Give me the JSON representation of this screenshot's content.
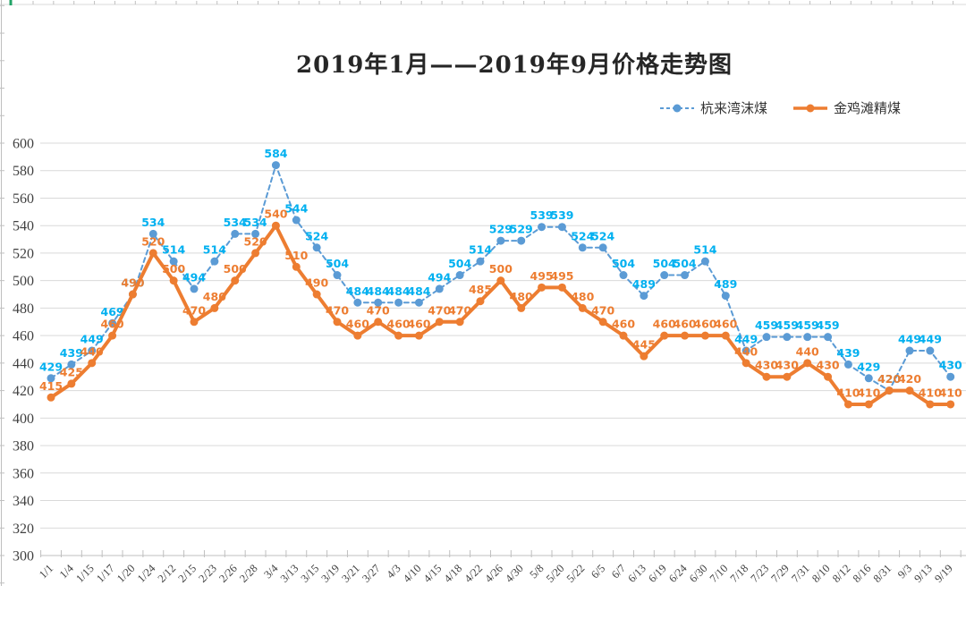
{
  "chart_data": {
    "type": "line",
    "title": "2019年1月——2019年9月价格走势图",
    "categories": [
      "1/1",
      "1/4",
      "1/15",
      "1/17",
      "1/20",
      "1/24",
      "2/12",
      "2/15",
      "2/23",
      "2/26",
      "2/28",
      "3/4",
      "3/13",
      "3/15",
      "3/19",
      "3/21",
      "3/27",
      "4/3",
      "4/10",
      "4/15",
      "4/18",
      "4/22",
      "4/26",
      "4/30",
      "5/8",
      "5/20",
      "5/22",
      "6/5",
      "6/7",
      "6/13",
      "6/19",
      "6/24",
      "6/30",
      "7/10",
      "7/18",
      "7/23",
      "7/29",
      "7/31",
      "8/10",
      "8/12",
      "8/16",
      "8/31",
      "9/3",
      "9/13",
      "9/19"
    ],
    "series": [
      {
        "name": "杭来湾沫煤",
        "style": "dashed",
        "color": "#5B9BD5",
        "label_color": "#00B0F0",
        "values": [
          429,
          439,
          449,
          469,
          490,
          534,
          514,
          494,
          514,
          534,
          534,
          584,
          544,
          524,
          504,
          484,
          484,
          484,
          484,
          494,
          504,
          514,
          529,
          529,
          539,
          539,
          524,
          524,
          504,
          489,
          504,
          504,
          514,
          489,
          449,
          459,
          459,
          459,
          459,
          439,
          429,
          420,
          449,
          449,
          430
        ]
      },
      {
        "name": "金鸡滩精煤",
        "style": "solid",
        "color": "#ED7D31",
        "label_color": "#ED7D31",
        "values": [
          415,
          425,
          440,
          460,
          490,
          520,
          500,
          470,
          480,
          500,
          520,
          540,
          510,
          490,
          470,
          460,
          470,
          460,
          460,
          470,
          470,
          485,
          500,
          480,
          495,
          495,
          480,
          470,
          460,
          445,
          460,
          460,
          460,
          460,
          440,
          430,
          430,
          440,
          430,
          410,
          410,
          420,
          420,
          410,
          410
        ]
      }
    ],
    "ylim": [
      300,
      600
    ],
    "yticks": [
      600,
      580,
      560,
      540,
      520,
      500,
      480,
      460,
      440,
      420,
      400,
      380,
      360,
      340,
      320,
      300
    ],
    "ytick_step": 20,
    "grid": true,
    "data_labels": true,
    "legend_position": "top-right",
    "xlabel": "",
    "ylabel": ""
  },
  "colors": {
    "grid": "#D9D9D9",
    "axis_line": "#BFBFBF",
    "axis_text": "#404040",
    "excel_green": "#21A366"
  }
}
